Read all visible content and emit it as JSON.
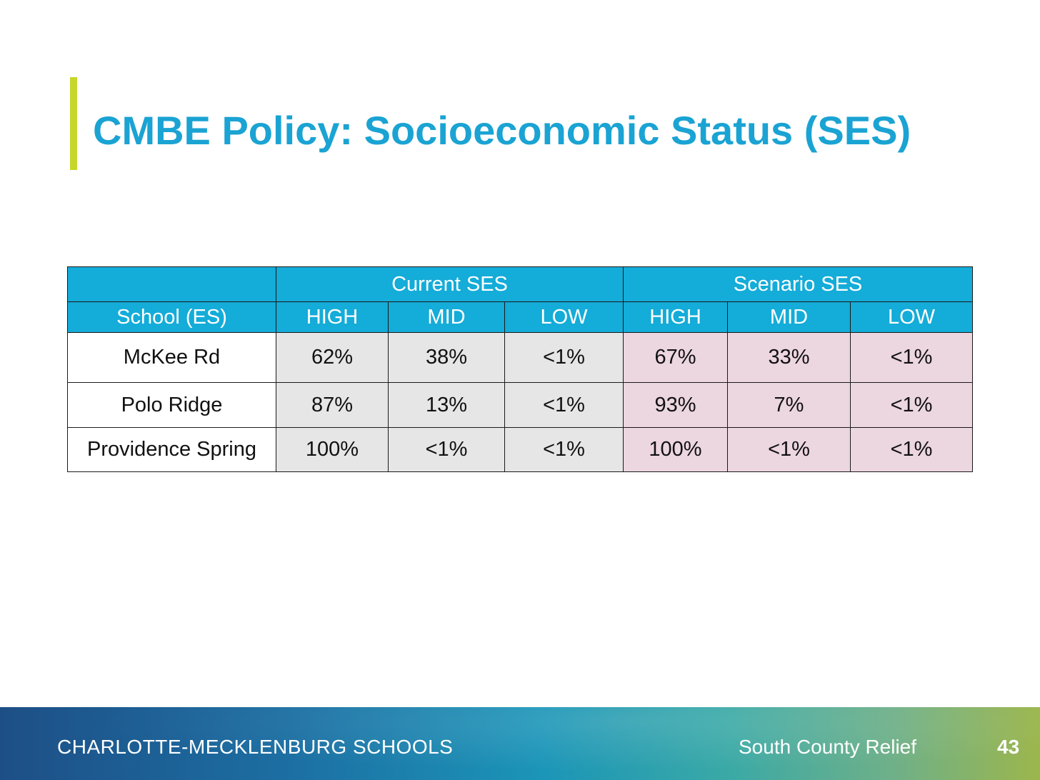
{
  "slide": {
    "title": "CMBE Policy: Socioeconomic Status (SES)",
    "accent_color": "#c5d72a",
    "title_color": "#1aa3d3"
  },
  "table": {
    "header_color": "#14acd8",
    "current_fill": "#e6e6e6",
    "scenario_fill": "#ecd6e0",
    "groups": [
      "Current SES",
      "Scenario SES"
    ],
    "school_header": "School (ES)",
    "columns": [
      "HIGH",
      "MID",
      "LOW",
      "HIGH",
      "MID",
      "LOW"
    ],
    "rows": [
      {
        "school": "McKee Rd",
        "current": [
          "62%",
          "38%",
          "<1%"
        ],
        "scenario": [
          "67%",
          "33%",
          "<1%"
        ]
      },
      {
        "school": "Polo Ridge",
        "current": [
          "87%",
          "13%",
          "<1%"
        ],
        "scenario": [
          "93%",
          "7%",
          "<1%"
        ]
      },
      {
        "school": "Providence Spring",
        "current": [
          "100%",
          "<1%",
          "<1%"
        ],
        "scenario": [
          "100%",
          "<1%",
          "<1%"
        ]
      }
    ]
  },
  "footer": {
    "organization": "CHARLOTTE-MECKLENBURG SCHOOLS",
    "project": "South County Relief",
    "page_number": "43"
  }
}
